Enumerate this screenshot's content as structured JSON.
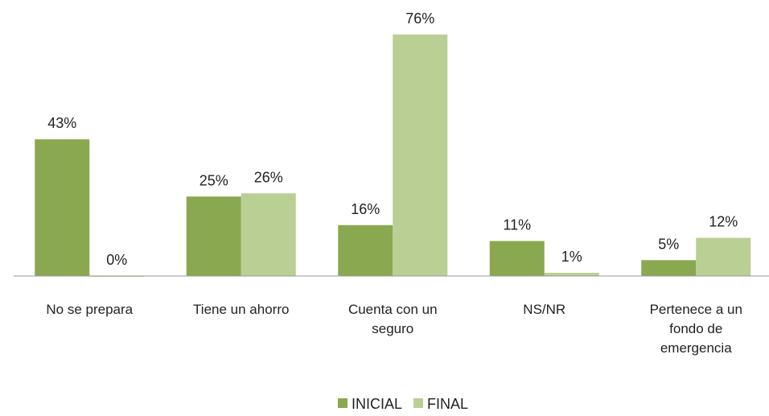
{
  "chart_data": {
    "type": "bar",
    "categories": [
      "No se prepara",
      "Tiene un ahorro",
      "Cuenta con un seguro",
      "NS/NR",
      "Pertenece a un fondo de emergencia"
    ],
    "series": [
      {
        "name": "INICIAL",
        "color": "#8aa84f",
        "values": [
          43,
          25,
          16,
          11,
          5
        ],
        "value_labels": [
          "43%",
          "25%",
          "16%",
          "11%",
          "5%"
        ]
      },
      {
        "name": "FINAL",
        "color": "#b9cf94",
        "values": [
          0,
          26,
          76,
          1,
          12
        ],
        "value_labels": [
          "0%",
          "26%",
          "76%",
          "1%",
          "12%"
        ]
      }
    ],
    "ylim": [
      0,
      80
    ],
    "legend": "bottom"
  }
}
